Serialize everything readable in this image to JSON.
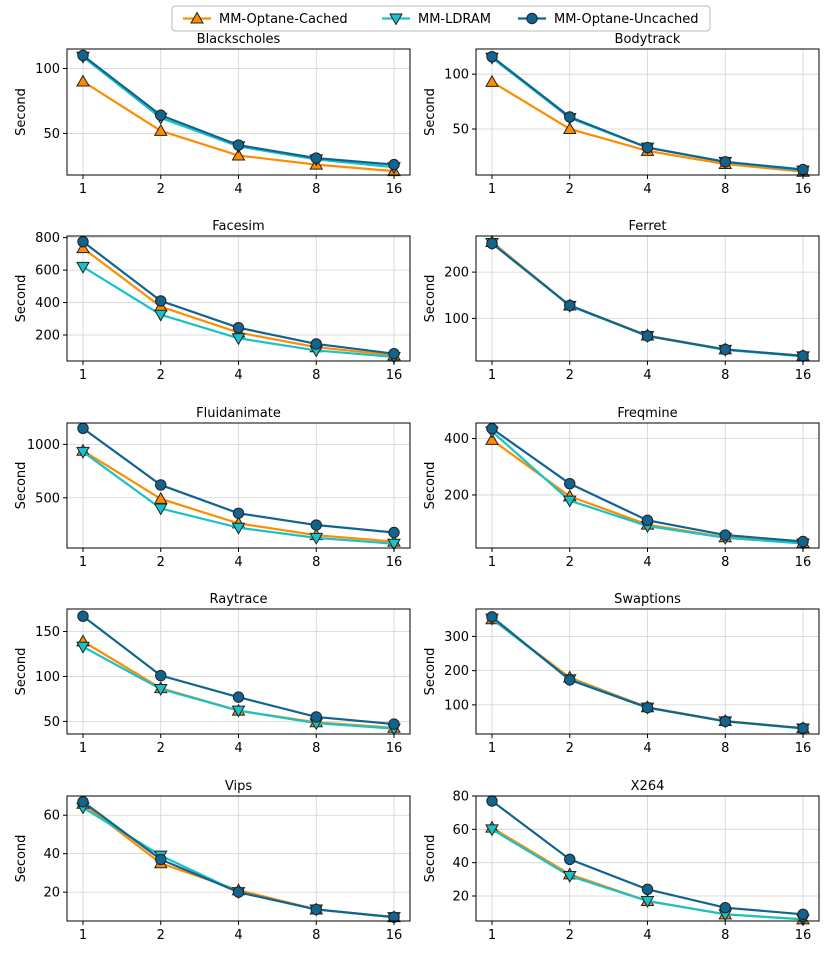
{
  "colors": {
    "cached": "#ff8c00",
    "ldram": "#17c2c9",
    "uncached": "#12648f",
    "marker_edge": "#222222",
    "grid": "#d3d3d3"
  },
  "legend": {
    "items": [
      {
        "label": "MM-Optane-Cached",
        "marker": "triangle-up",
        "color": "#ff8c00"
      },
      {
        "label": "MM-LDRAM",
        "marker": "triangle-down",
        "color": "#17c2c9"
      },
      {
        "label": "MM-Optane-Uncached",
        "marker": "circle",
        "color": "#12648f"
      }
    ],
    "placement": "top-center"
  },
  "chart_data": [
    {
      "type": "line",
      "title": "Blackscholes",
      "xlabel": "",
      "ylabel": "Second",
      "categories": [
        "1",
        "2",
        "4",
        "8",
        "16"
      ],
      "ylim": [
        18,
        115
      ],
      "yticks": [
        50,
        100
      ],
      "grid": true,
      "series": [
        {
          "name": "MM-Optane-Cached",
          "values": [
            90,
            52,
            33,
            26,
            21
          ]
        },
        {
          "name": "MM-LDRAM",
          "values": [
            109,
            62,
            40,
            30,
            24
          ]
        },
        {
          "name": "MM-Optane-Uncached",
          "values": [
            110,
            64,
            41,
            31,
            26
          ]
        }
      ]
    },
    {
      "type": "line",
      "title": "Bodytrack",
      "xlabel": "",
      "ylabel": "Second",
      "categories": [
        "1",
        "2",
        "4",
        "8",
        "16"
      ],
      "ylim": [
        8,
        123
      ],
      "yticks": [
        50,
        100
      ],
      "grid": true,
      "series": [
        {
          "name": "MM-Optane-Cached",
          "values": [
            93,
            50,
            30,
            18,
            11
          ]
        },
        {
          "name": "MM-LDRAM",
          "values": [
            115,
            60,
            33,
            20,
            12
          ]
        },
        {
          "name": "MM-Optane-Uncached",
          "values": [
            116,
            61,
            33,
            20,
            13
          ]
        }
      ]
    },
    {
      "type": "line",
      "title": "Facesim",
      "xlabel": "",
      "ylabel": "Second",
      "categories": [
        "1",
        "2",
        "4",
        "8",
        "16"
      ],
      "ylim": [
        40,
        810
      ],
      "yticks": [
        200,
        400,
        600,
        800
      ],
      "grid": true,
      "series": [
        {
          "name": "MM-Optane-Cached",
          "values": [
            735,
            375,
            215,
            125,
            75
          ]
        },
        {
          "name": "MM-LDRAM",
          "values": [
            620,
            325,
            180,
            105,
            65
          ]
        },
        {
          "name": "MM-Optane-Uncached",
          "values": [
            775,
            410,
            245,
            145,
            85
          ]
        }
      ]
    },
    {
      "type": "line",
      "title": "Ferret",
      "xlabel": "",
      "ylabel": "Second",
      "categories": [
        "1",
        "2",
        "4",
        "8",
        "16"
      ],
      "ylim": [
        8,
        278
      ],
      "yticks": [
        100,
        200
      ],
      "grid": true,
      "series": [
        {
          "name": "MM-Optane-Cached",
          "values": [
            265,
            128,
            63,
            33,
            19
          ]
        },
        {
          "name": "MM-LDRAM",
          "values": [
            263,
            127,
            62,
            32,
            18
          ]
        },
        {
          "name": "MM-Optane-Uncached",
          "values": [
            262,
            128,
            62,
            33,
            19
          ]
        }
      ]
    },
    {
      "type": "line",
      "title": "Fluidanimate",
      "xlabel": "",
      "ylabel": "Second",
      "categories": [
        "1",
        "2",
        "4",
        "8",
        "16"
      ],
      "ylim": [
        30,
        1200
      ],
      "yticks": [
        500,
        1000
      ],
      "grid": true,
      "series": [
        {
          "name": "MM-Optane-Cached",
          "values": [
            940,
            490,
            260,
            150,
            90
          ]
        },
        {
          "name": "MM-LDRAM",
          "values": [
            930,
            400,
            220,
            125,
            70
          ]
        },
        {
          "name": "MM-Optane-Uncached",
          "values": [
            1150,
            620,
            355,
            245,
            175
          ]
        }
      ]
    },
    {
      "type": "line",
      "title": "Freqmine",
      "xlabel": "",
      "ylabel": "Second",
      "categories": [
        "1",
        "2",
        "4",
        "8",
        "16"
      ],
      "ylim": [
        12,
        455
      ],
      "yticks": [
        200,
        400
      ],
      "grid": true,
      "series": [
        {
          "name": "MM-Optane-Cached",
          "values": [
            395,
            195,
            95,
            50,
            30
          ]
        },
        {
          "name": "MM-LDRAM",
          "values": [
            425,
            180,
            90,
            48,
            28
          ]
        },
        {
          "name": "MM-Optane-Uncached",
          "values": [
            435,
            240,
            110,
            58,
            35
          ]
        }
      ]
    },
    {
      "type": "line",
      "title": "Raytrace",
      "xlabel": "",
      "ylabel": "Second",
      "categories": [
        "1",
        "2",
        "4",
        "8",
        "16"
      ],
      "ylim": [
        36,
        175
      ],
      "yticks": [
        50,
        100,
        150
      ],
      "grid": true,
      "series": [
        {
          "name": "MM-Optane-Cached",
          "values": [
            139,
            87,
            62,
            49,
            43
          ]
        },
        {
          "name": "MM-LDRAM",
          "values": [
            133,
            86,
            62,
            48,
            42
          ]
        },
        {
          "name": "MM-Optane-Uncached",
          "values": [
            167,
            101,
            77,
            55,
            47
          ]
        }
      ]
    },
    {
      "type": "line",
      "title": "Swaptions",
      "xlabel": "",
      "ylabel": "Second",
      "categories": [
        "1",
        "2",
        "4",
        "8",
        "16"
      ],
      "ylim": [
        15,
        380
      ],
      "yticks": [
        100,
        200,
        300
      ],
      "grid": true,
      "series": [
        {
          "name": "MM-Optane-Cached",
          "values": [
            350,
            180,
            93,
            53,
            32
          ]
        },
        {
          "name": "MM-LDRAM",
          "values": [
            352,
            175,
            92,
            52,
            31
          ]
        },
        {
          "name": "MM-Optane-Uncached",
          "values": [
            357,
            173,
            92,
            52,
            32
          ]
        }
      ]
    },
    {
      "type": "line",
      "title": "Vips",
      "xlabel": "",
      "ylabel": "Second",
      "categories": [
        "1",
        "2",
        "4",
        "8",
        "16"
      ],
      "ylim": [
        5,
        70
      ],
      "yticks": [
        20,
        40,
        60
      ],
      "grid": true,
      "series": [
        {
          "name": "MM-Optane-Cached",
          "values": [
            66,
            35,
            21,
            11,
            7
          ]
        },
        {
          "name": "MM-LDRAM",
          "values": [
            64,
            39,
            20,
            11,
            7
          ]
        },
        {
          "name": "MM-Optane-Uncached",
          "values": [
            67,
            37,
            20,
            11,
            7
          ]
        }
      ]
    },
    {
      "type": "line",
      "title": "X264",
      "xlabel": "",
      "ylabel": "Second",
      "categories": [
        "1",
        "2",
        "4",
        "8",
        "16"
      ],
      "ylim": [
        5,
        80
      ],
      "yticks": [
        20,
        40,
        60,
        80
      ],
      "grid": true,
      "series": [
        {
          "name": "MM-Optane-Cached",
          "values": [
            61,
            33,
            17,
            9,
            6
          ]
        },
        {
          "name": "MM-LDRAM",
          "values": [
            60,
            32,
            17,
            9,
            6
          ]
        },
        {
          "name": "MM-Optane-Uncached",
          "values": [
            77,
            42,
            24,
            13,
            9
          ]
        }
      ]
    }
  ]
}
